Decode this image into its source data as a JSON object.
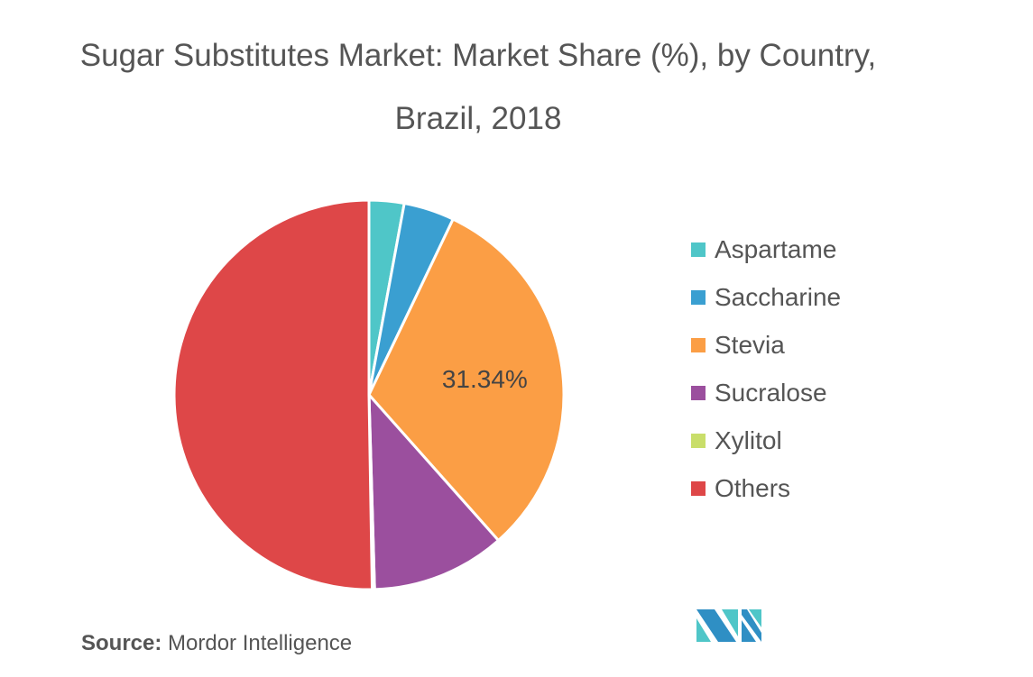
{
  "chart_data": {
    "type": "pie",
    "title": "Sugar Substitutes Market: Market Share (%), by Country,",
    "subtitle": "Brazil, 2018",
    "categories": [
      "Aspartame",
      "Saccharine",
      "Stevia",
      "Sucralose",
      "Xylitol",
      "Others"
    ],
    "values": [
      2.9,
      4.2,
      31.34,
      11.1,
      0.2,
      50.26
    ],
    "colors": [
      "#4fc6c8",
      "#3a9fd1",
      "#fb9e45",
      "#9b4f9e",
      "#c9de6a",
      "#de4748"
    ],
    "data_labels": [
      {
        "category": "Stevia",
        "text": "31.34%"
      }
    ],
    "legend_position": "right"
  },
  "source": {
    "label": "Source:",
    "text": " Mordor Intelligence"
  },
  "logo": {
    "colors": [
      "#2f8fc4",
      "#4fc6c8"
    ]
  }
}
